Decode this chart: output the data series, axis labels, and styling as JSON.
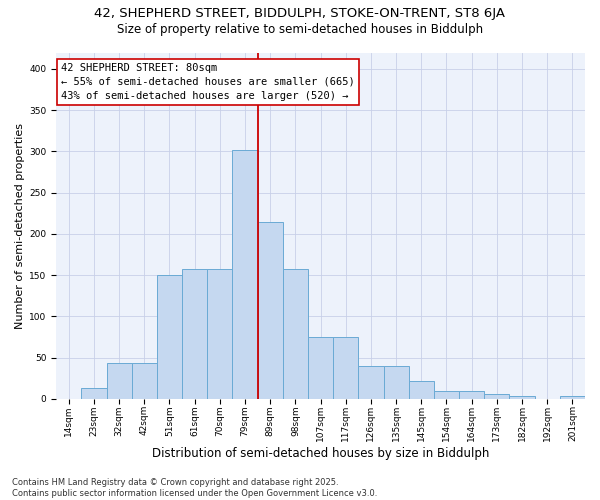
{
  "title_line1": "42, SHEPHERD STREET, BIDDULPH, STOKE-ON-TRENT, ST8 6JA",
  "title_line2": "Size of property relative to semi-detached houses in Biddulph",
  "xlabel": "Distribution of semi-detached houses by size in Biddulph",
  "ylabel": "Number of semi-detached properties",
  "categories": [
    "14sqm",
    "23sqm",
    "32sqm",
    "42sqm",
    "51sqm",
    "61sqm",
    "70sqm",
    "79sqm",
    "89sqm",
    "98sqm",
    "107sqm",
    "117sqm",
    "126sqm",
    "135sqm",
    "145sqm",
    "154sqm",
    "164sqm",
    "173sqm",
    "182sqm",
    "192sqm",
    "201sqm"
  ],
  "values": [
    0,
    13,
    44,
    44,
    150,
    158,
    157,
    302,
    215,
    158,
    75,
    75,
    40,
    40,
    22,
    10,
    10,
    6,
    3,
    0,
    3
  ],
  "bar_color": "#c5d8f0",
  "bar_edge_color": "#6aaad4",
  "vline_color": "#cc0000",
  "annotation_title": "42 SHEPHERD STREET: 80sqm",
  "annotation_line2": "← 55% of semi-detached houses are smaller (665)",
  "annotation_line3": "43% of semi-detached houses are larger (520) →",
  "annotation_edge_color": "#cc0000",
  "ylim": [
    0,
    420
  ],
  "yticks": [
    0,
    50,
    100,
    150,
    200,
    250,
    300,
    350,
    400
  ],
  "bg_color": "#edf2fb",
  "grid_color": "#c8d0e8",
  "title_fontsize": 9.5,
  "subtitle_fontsize": 8.5,
  "ylabel_fontsize": 8,
  "xlabel_fontsize": 8.5,
  "tick_fontsize": 6.5,
  "annot_fontsize": 7.5,
  "footer_fontsize": 6,
  "footer_line1": "Contains HM Land Registry data © Crown copyright and database right 2025.",
  "footer_line2": "Contains public sector information licensed under the Open Government Licence v3.0."
}
